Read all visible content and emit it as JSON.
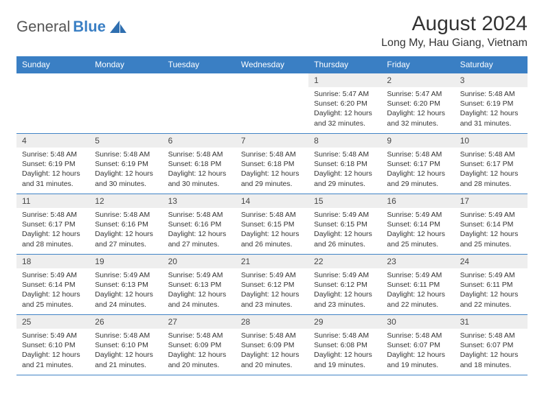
{
  "brand": {
    "general": "General",
    "blue": "Blue"
  },
  "title": "August 2024",
  "location": "Long My, Hau Giang, Vietnam",
  "colors": {
    "header_bg": "#3a7fc4",
    "header_text": "#ffffff",
    "daynum_bg": "#eeeeee",
    "body_text": "#333333",
    "rule": "#3a7fc4",
    "page_bg": "#ffffff"
  },
  "weekdays": [
    "Sunday",
    "Monday",
    "Tuesday",
    "Wednesday",
    "Thursday",
    "Friday",
    "Saturday"
  ],
  "layout": {
    "columns": 7,
    "rows": 5,
    "first_day_column_index": 4
  },
  "days": [
    {
      "n": 1,
      "sunrise": "5:47 AM",
      "sunset": "6:20 PM",
      "daylight": "12 hours and 32 minutes."
    },
    {
      "n": 2,
      "sunrise": "5:47 AM",
      "sunset": "6:20 PM",
      "daylight": "12 hours and 32 minutes."
    },
    {
      "n": 3,
      "sunrise": "5:48 AM",
      "sunset": "6:19 PM",
      "daylight": "12 hours and 31 minutes."
    },
    {
      "n": 4,
      "sunrise": "5:48 AM",
      "sunset": "6:19 PM",
      "daylight": "12 hours and 31 minutes."
    },
    {
      "n": 5,
      "sunrise": "5:48 AM",
      "sunset": "6:19 PM",
      "daylight": "12 hours and 30 minutes."
    },
    {
      "n": 6,
      "sunrise": "5:48 AM",
      "sunset": "6:18 PM",
      "daylight": "12 hours and 30 minutes."
    },
    {
      "n": 7,
      "sunrise": "5:48 AM",
      "sunset": "6:18 PM",
      "daylight": "12 hours and 29 minutes."
    },
    {
      "n": 8,
      "sunrise": "5:48 AM",
      "sunset": "6:18 PM",
      "daylight": "12 hours and 29 minutes."
    },
    {
      "n": 9,
      "sunrise": "5:48 AM",
      "sunset": "6:17 PM",
      "daylight": "12 hours and 29 minutes."
    },
    {
      "n": 10,
      "sunrise": "5:48 AM",
      "sunset": "6:17 PM",
      "daylight": "12 hours and 28 minutes."
    },
    {
      "n": 11,
      "sunrise": "5:48 AM",
      "sunset": "6:17 PM",
      "daylight": "12 hours and 28 minutes."
    },
    {
      "n": 12,
      "sunrise": "5:48 AM",
      "sunset": "6:16 PM",
      "daylight": "12 hours and 27 minutes."
    },
    {
      "n": 13,
      "sunrise": "5:48 AM",
      "sunset": "6:16 PM",
      "daylight": "12 hours and 27 minutes."
    },
    {
      "n": 14,
      "sunrise": "5:48 AM",
      "sunset": "6:15 PM",
      "daylight": "12 hours and 26 minutes."
    },
    {
      "n": 15,
      "sunrise": "5:49 AM",
      "sunset": "6:15 PM",
      "daylight": "12 hours and 26 minutes."
    },
    {
      "n": 16,
      "sunrise": "5:49 AM",
      "sunset": "6:14 PM",
      "daylight": "12 hours and 25 minutes."
    },
    {
      "n": 17,
      "sunrise": "5:49 AM",
      "sunset": "6:14 PM",
      "daylight": "12 hours and 25 minutes."
    },
    {
      "n": 18,
      "sunrise": "5:49 AM",
      "sunset": "6:14 PM",
      "daylight": "12 hours and 25 minutes."
    },
    {
      "n": 19,
      "sunrise": "5:49 AM",
      "sunset": "6:13 PM",
      "daylight": "12 hours and 24 minutes."
    },
    {
      "n": 20,
      "sunrise": "5:49 AM",
      "sunset": "6:13 PM",
      "daylight": "12 hours and 24 minutes."
    },
    {
      "n": 21,
      "sunrise": "5:49 AM",
      "sunset": "6:12 PM",
      "daylight": "12 hours and 23 minutes."
    },
    {
      "n": 22,
      "sunrise": "5:49 AM",
      "sunset": "6:12 PM",
      "daylight": "12 hours and 23 minutes."
    },
    {
      "n": 23,
      "sunrise": "5:49 AM",
      "sunset": "6:11 PM",
      "daylight": "12 hours and 22 minutes."
    },
    {
      "n": 24,
      "sunrise": "5:49 AM",
      "sunset": "6:11 PM",
      "daylight": "12 hours and 22 minutes."
    },
    {
      "n": 25,
      "sunrise": "5:49 AM",
      "sunset": "6:10 PM",
      "daylight": "12 hours and 21 minutes."
    },
    {
      "n": 26,
      "sunrise": "5:48 AM",
      "sunset": "6:10 PM",
      "daylight": "12 hours and 21 minutes."
    },
    {
      "n": 27,
      "sunrise": "5:48 AM",
      "sunset": "6:09 PM",
      "daylight": "12 hours and 20 minutes."
    },
    {
      "n": 28,
      "sunrise": "5:48 AM",
      "sunset": "6:09 PM",
      "daylight": "12 hours and 20 minutes."
    },
    {
      "n": 29,
      "sunrise": "5:48 AM",
      "sunset": "6:08 PM",
      "daylight": "12 hours and 19 minutes."
    },
    {
      "n": 30,
      "sunrise": "5:48 AM",
      "sunset": "6:07 PM",
      "daylight": "12 hours and 19 minutes."
    },
    {
      "n": 31,
      "sunrise": "5:48 AM",
      "sunset": "6:07 PM",
      "daylight": "12 hours and 18 minutes."
    }
  ],
  "labels": {
    "sunrise_prefix": "Sunrise: ",
    "sunset_prefix": "Sunset: ",
    "daylight_prefix": "Daylight: "
  }
}
